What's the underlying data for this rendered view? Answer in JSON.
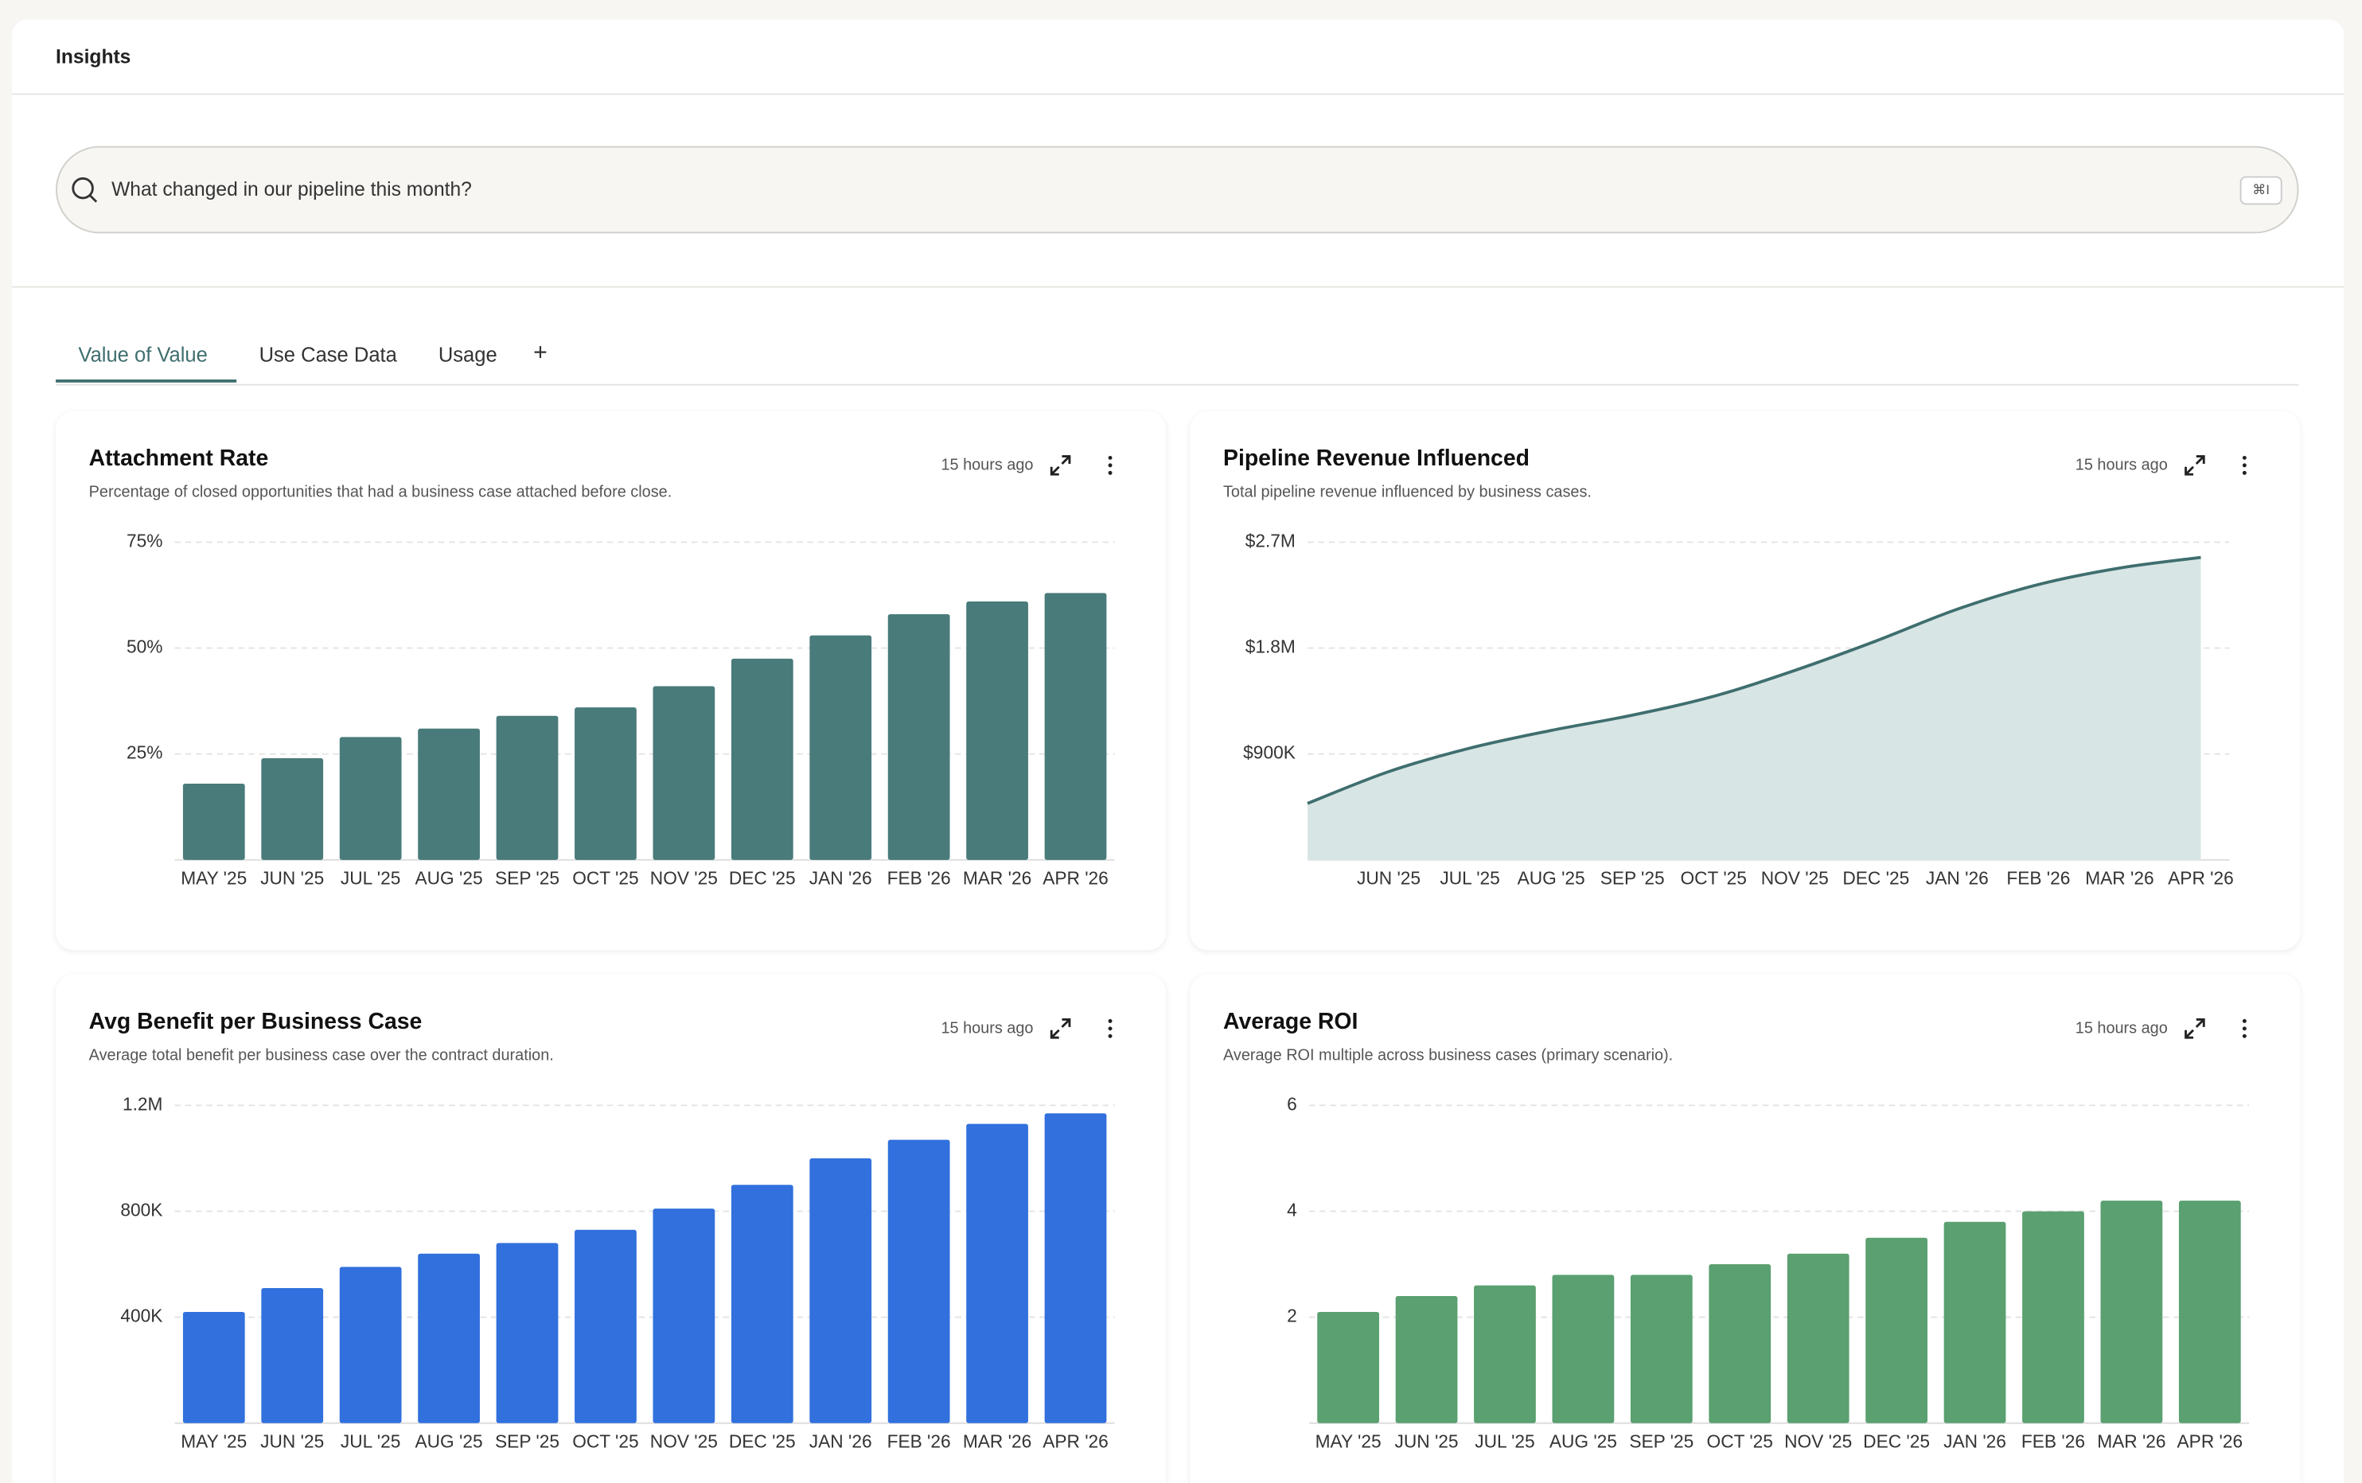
{
  "header": {
    "title": "Insights"
  },
  "search": {
    "placeholder": "What changed in our pipeline this month?",
    "shortcut": "⌘I"
  },
  "tabs": [
    "Value of Value",
    "Use Case Data",
    "Usage"
  ],
  "add_tab": "+",
  "chart_data": [
    {
      "type": "bar",
      "title": "Attachment Rate",
      "subtitle": "Percentage of closed opportunities that had a business case attached before close.",
      "updated": "15 hours ago",
      "categories": [
        "MAY '25",
        "JUN '25",
        "JUL '25",
        "AUG '25",
        "SEP '25",
        "OCT '25",
        "NOV '25",
        "DEC '25",
        "JAN '26",
        "FEB '26",
        "MAR '26",
        "APR '26"
      ],
      "values": [
        18,
        24,
        29,
        31,
        34,
        36,
        41,
        47.5,
        53,
        58,
        61,
        63
      ],
      "color": "#4a7b7b",
      "ylim": [
        0,
        75
      ],
      "yticks": [
        {
          "value": 25,
          "label": "25%"
        },
        {
          "value": 50,
          "label": "50%"
        },
        {
          "value": 75,
          "label": "75%"
        }
      ],
      "grid": true
    },
    {
      "type": "area",
      "title": "Pipeline Revenue Influenced",
      "subtitle": "Total pipeline revenue influenced by business cases.",
      "updated": "15 hours ago",
      "categories": [
        null,
        "JUN '25",
        "JUL '25",
        "AUG '25",
        "SEP '25",
        "OCT '25",
        "NOV '25",
        "DEC '25",
        "JAN '26",
        "FEB '26",
        "MAR '26",
        "APR '26"
      ],
      "values": [
        480000,
        750000,
        950000,
        1100000,
        1230000,
        1390000,
        1610000,
        1860000,
        2130000,
        2340000,
        2480000,
        2570000
      ],
      "color": "#3f6e6e",
      "area_color": "#d8e5e5",
      "ylim": [
        0,
        2700000
      ],
      "yticks": [
        {
          "value": 900000,
          "label": "$900K"
        },
        {
          "value": 1800000,
          "label": "$1.8M"
        },
        {
          "value": 2700000,
          "label": "$2.7M"
        }
      ],
      "grid": true
    },
    {
      "type": "bar",
      "title": "Avg Benefit per Business Case",
      "subtitle": "Average total benefit per business case over the contract duration.",
      "updated": "15 hours ago",
      "categories": [
        "MAY '25",
        "JUN '25",
        "JUL '25",
        "AUG '25",
        "SEP '25",
        "OCT '25",
        "NOV '25",
        "DEC '25",
        "JAN '26",
        "FEB '26",
        "MAR '26",
        "APR '26"
      ],
      "values": [
        420000,
        510000,
        590000,
        640000,
        680000,
        730000,
        810000,
        900000,
        1000000,
        1070000,
        1130000,
        1170000
      ],
      "color": "#3170dd",
      "ylim": [
        0,
        1200000
      ],
      "yticks": [
        {
          "value": 400000,
          "label": "400K"
        },
        {
          "value": 800000,
          "label": "800K"
        },
        {
          "value": 1200000,
          "label": "1.2M"
        }
      ],
      "grid": true
    },
    {
      "type": "bar",
      "title": "Average ROI",
      "subtitle": "Average ROI multiple across business cases (primary scenario).",
      "updated": "15 hours ago",
      "categories": [
        "MAY '25",
        "JUN '25",
        "JUL '25",
        "AUG '25",
        "SEP '25",
        "OCT '25",
        "NOV '25",
        "DEC '25",
        "JAN '26",
        "FEB '26",
        "MAR '26",
        "APR '26"
      ],
      "values": [
        2.1,
        2.4,
        2.6,
        2.8,
        2.8,
        3.0,
        3.2,
        3.5,
        3.8,
        4.0,
        4.2,
        4.2
      ],
      "color": "#5aa070",
      "ylim": [
        0,
        6
      ],
      "yticks": [
        2,
        4,
        6
      ],
      "grid": true
    }
  ]
}
